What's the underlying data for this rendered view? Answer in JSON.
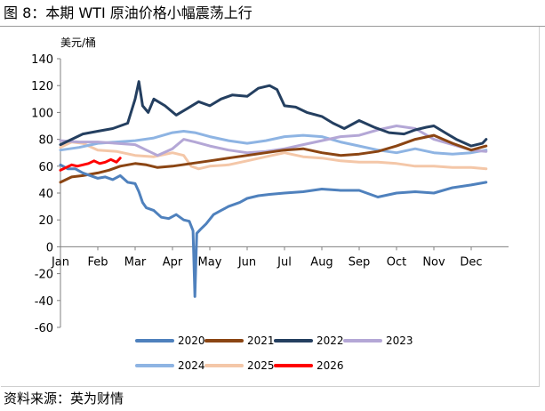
{
  "figure": {
    "title": "图 8：本期 WTI 原油价格小幅震荡上行",
    "source": "资料来源：英为财情"
  },
  "chart_data": {
    "type": "line",
    "ylabel": "美元/桶",
    "ylim": [
      -60,
      140
    ],
    "yticks": [
      -60,
      -40,
      -20,
      0,
      20,
      40,
      60,
      80,
      100,
      120,
      140
    ],
    "x_categories": [
      "Jan",
      "Feb",
      "Mar",
      "Apr",
      "May",
      "Jun",
      "Jul",
      "Aug",
      "Sep",
      "Oct",
      "Nov",
      "Dec"
    ],
    "grid": false,
    "legend_position": "bottom",
    "series": [
      {
        "name": "2020",
        "color": "#4f81bd",
        "x": [
          0,
          0.2,
          0.4,
          0.6,
          0.8,
          1.0,
          1.2,
          1.4,
          1.6,
          1.8,
          2.0,
          2.1,
          2.2,
          2.3,
          2.5,
          2.7,
          2.9,
          3.1,
          3.3,
          3.45,
          3.55,
          3.6,
          3.65,
          3.75,
          3.9,
          4.1,
          4.3,
          4.5,
          4.8,
          5.0,
          5.3,
          5.6,
          6.0,
          6.5,
          7.0,
          7.5,
          8.0,
          8.5,
          9.0,
          9.5,
          10.0,
          10.5,
          11.0,
          11.4
        ],
        "y": [
          61,
          58,
          58,
          55,
          53,
          51,
          52,
          50,
          53,
          48,
          47,
          41,
          33,
          29,
          27,
          22,
          21,
          24,
          20,
          19,
          12,
          -37,
          10,
          13,
          17,
          24,
          27,
          30,
          33,
          36,
          38,
          39,
          40,
          41,
          43,
          42,
          42,
          37,
          40,
          41,
          40,
          44,
          46,
          48
        ]
      },
      {
        "name": "2021",
        "color": "#8b4513",
        "x": [
          0,
          0.3,
          0.6,
          1.0,
          1.3,
          1.6,
          2.0,
          2.3,
          2.6,
          3.0,
          3.5,
          4.0,
          4.5,
          5.0,
          5.5,
          6.0,
          6.5,
          7.0,
          7.5,
          8.0,
          8.5,
          9.0,
          9.5,
          10.0,
          10.5,
          11.0,
          11.4
        ],
        "y": [
          48,
          52,
          53,
          55,
          57,
          60,
          62,
          61,
          59,
          60,
          62,
          64,
          66,
          68,
          70,
          72,
          73,
          70,
          68,
          69,
          71,
          75,
          80,
          83,
          77,
          72,
          75
        ]
      },
      {
        "name": "2022",
        "color": "#243f60",
        "x": [
          0,
          0.3,
          0.6,
          1.0,
          1.4,
          1.8,
          2.0,
          2.1,
          2.2,
          2.35,
          2.5,
          2.8,
          3.1,
          3.4,
          3.7,
          4.0,
          4.3,
          4.6,
          5.0,
          5.3,
          5.6,
          5.8,
          6.0,
          6.3,
          6.6,
          7.0,
          7.3,
          7.6,
          8.0,
          8.4,
          8.8,
          9.2,
          9.5,
          9.8,
          10.0,
          10.3,
          10.6,
          11.0,
          11.3,
          11.4
        ],
        "y": [
          76,
          80,
          84,
          86,
          88,
          92,
          110,
          123,
          105,
          100,
          110,
          105,
          98,
          103,
          108,
          105,
          110,
          113,
          112,
          118,
          120,
          117,
          105,
          104,
          100,
          97,
          92,
          88,
          94,
          89,
          85,
          84,
          87,
          89,
          90,
          85,
          80,
          75,
          77,
          80
        ]
      },
      {
        "name": "2023",
        "color": "#b4a7d6",
        "x": [
          0,
          0.5,
          1.0,
          1.5,
          2.0,
          2.3,
          2.6,
          3.0,
          3.3,
          3.6,
          4.0,
          4.5,
          5.0,
          5.5,
          6.0,
          6.5,
          7.0,
          7.5,
          8.0,
          8.5,
          9.0,
          9.5,
          10.0,
          10.5,
          11.0,
          11.4
        ],
        "y": [
          79,
          78,
          78,
          77,
          76,
          72,
          68,
          73,
          80,
          78,
          75,
          72,
          70,
          71,
          73,
          76,
          79,
          82,
          83,
          87,
          90,
          88,
          80,
          76,
          72,
          71
        ]
      },
      {
        "name": "2024",
        "color": "#8eb4e3",
        "x": [
          0,
          0.5,
          1.0,
          1.5,
          2.0,
          2.5,
          3.0,
          3.3,
          3.6,
          4.0,
          4.5,
          5.0,
          5.5,
          6.0,
          6.5,
          7.0,
          7.5,
          8.0,
          8.5,
          9.0,
          9.5,
          10.0,
          10.5,
          11.0,
          11.4
        ],
        "y": [
          72,
          74,
          77,
          78,
          79,
          81,
          85,
          86,
          85,
          82,
          79,
          77,
          79,
          82,
          83,
          82,
          78,
          75,
          72,
          70,
          73,
          70,
          69,
          70,
          72
        ]
      },
      {
        "name": "2025",
        "color": "#f4c7a8",
        "x": [
          0,
          0.3,
          0.6,
          1.0,
          1.5,
          2.0,
          2.5,
          3.0,
          3.3,
          3.5,
          3.7,
          4.0,
          4.5,
          5.0,
          5.5,
          6.0,
          6.5,
          7.0,
          7.5,
          8.0,
          8.5,
          9.0,
          9.5,
          10.0,
          10.5,
          11.0,
          11.4
        ],
        "y": [
          74,
          78,
          77,
          72,
          71,
          68,
          67,
          70,
          68,
          60,
          58,
          60,
          61,
          64,
          67,
          70,
          67,
          66,
          64,
          63,
          63,
          62,
          60,
          60,
          59,
          59,
          58
        ]
      },
      {
        "name": "2026",
        "color": "#ff0000",
        "x": [
          0,
          0.15,
          0.3,
          0.45,
          0.6,
          0.75,
          0.9,
          1.05,
          1.2,
          1.35,
          1.5,
          1.6
        ],
        "y": [
          57,
          59,
          61,
          60,
          61,
          62,
          64,
          62,
          63,
          65,
          63,
          66
        ]
      }
    ]
  }
}
